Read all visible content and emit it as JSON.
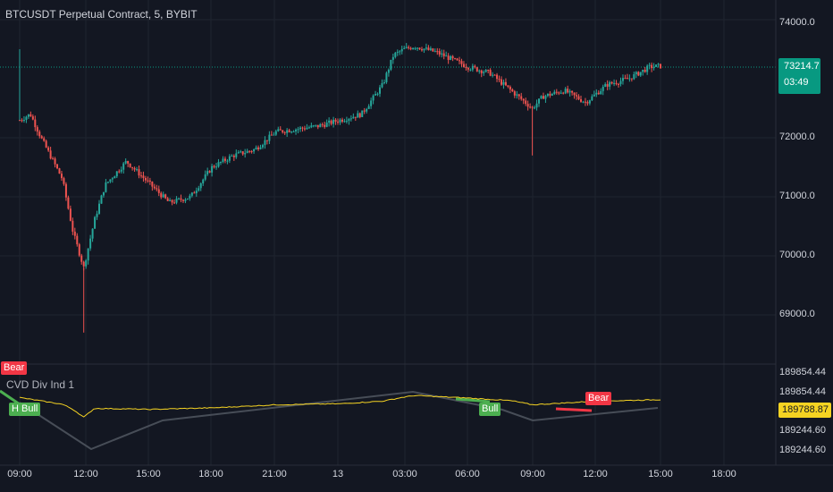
{
  "title": "BTCUSDT Perpetual Contract, 5, BYBIT",
  "indicator_title": "CVD Div Ind 1",
  "colors": {
    "background": "#131722",
    "grid": "#1f2430",
    "up": "#26a69a",
    "down": "#ef5350",
    "last_line": "#089981",
    "cvd": "#f5d322",
    "bull": "#4caf50",
    "bear": "#f23645",
    "zigzag": "#474d57"
  },
  "price_axis": {
    "labels": [
      "74000.0",
      "72000.0",
      "71000.0",
      "70000.0",
      "69000.0"
    ],
    "last_price": "73214.7",
    "countdown": "03:49"
  },
  "indicator_axis": {
    "labels": [
      "189854.44",
      "189854.44",
      "189244.60",
      "189244.60"
    ],
    "last_value": "189788.87"
  },
  "time_axis": {
    "labels": [
      "09:00",
      "12:00",
      "15:00",
      "18:00",
      "21:00",
      "13",
      "03:00",
      "06:00",
      "09:00",
      "12:00",
      "15:00",
      "18:00"
    ]
  },
  "divergence_labels": [
    {
      "text": "Bear",
      "kind": "bear"
    },
    {
      "text": "H Bull",
      "kind": "bull"
    },
    {
      "text": "Bull",
      "kind": "bull"
    },
    {
      "text": "Bear",
      "kind": "bear"
    }
  ],
  "chart_data": {
    "type": "candlestick",
    "title": "BTCUSDT Perpetual Contract, 5, BYBIT",
    "price_anchors": [
      {
        "t": "09:00",
        "price": 72300
      },
      {
        "t": "09:30",
        "price": 72400
      },
      {
        "t": "10:00",
        "price": 72000
      },
      {
        "t": "11:00",
        "price": 71300
      },
      {
        "t": "11:30",
        "price": 70400
      },
      {
        "t": "12:00",
        "price": 69800
      },
      {
        "t": "12:30",
        "price": 70600
      },
      {
        "t": "13:00",
        "price": 71200
      },
      {
        "t": "14:00",
        "price": 71600
      },
      {
        "t": "15:00",
        "price": 71250
      },
      {
        "t": "16:00",
        "price": 70900
      },
      {
        "t": "17:00",
        "price": 71000
      },
      {
        "t": "18:00",
        "price": 71500
      },
      {
        "t": "19:00",
        "price": 71700
      },
      {
        "t": "20:00",
        "price": 71800
      },
      {
        "t": "21:00",
        "price": 72100
      },
      {
        "t": "22:00",
        "price": 72150
      },
      {
        "t": "23:00",
        "price": 72200
      },
      {
        "t": "00:00",
        "price": 72300
      },
      {
        "t": "01:00",
        "price": 72400
      },
      {
        "t": "02:00",
        "price": 72900
      },
      {
        "t": "02:30",
        "price": 73400
      },
      {
        "t": "03:00",
        "price": 73500
      },
      {
        "t": "03:30",
        "price": 73550
      },
      {
        "t": "04:30",
        "price": 73450
      },
      {
        "t": "06:00",
        "price": 73200
      },
      {
        "t": "07:00",
        "price": 73100
      },
      {
        "t": "08:00",
        "price": 72800
      },
      {
        "t": "09:00",
        "price": 72500
      },
      {
        "t": "09:30",
        "price": 72700
      },
      {
        "t": "10:30",
        "price": 72800
      },
      {
        "t": "11:30",
        "price": 72600
      },
      {
        "t": "12:30",
        "price": 72900
      },
      {
        "t": "13:30",
        "price": 73000
      },
      {
        "t": "14:30",
        "price": 73200
      },
      {
        "t": "15:00",
        "price": 73215
      }
    ],
    "spikes": [
      {
        "t": "09:00",
        "high": 73500
      },
      {
        "t": "12:00",
        "low": 68700
      },
      {
        "t": "09:00",
        "low": 71700
      }
    ],
    "last_price": 73214.7,
    "ylim": [
      68700,
      74100
    ],
    "cvd_anchors": [
      {
        "t": "09:00",
        "value": 189830
      },
      {
        "t": "11:00",
        "value": 189700
      },
      {
        "t": "11:30",
        "value": 189600
      },
      {
        "t": "12:00",
        "value": 189450
      },
      {
        "t": "12:30",
        "value": 189620
      },
      {
        "t": "14:00",
        "value": 189610
      },
      {
        "t": "15:00",
        "value": 189600
      },
      {
        "t": "18:00",
        "value": 189630
      },
      {
        "t": "21:00",
        "value": 189690
      },
      {
        "t": "00:00",
        "value": 189710
      },
      {
        "t": "02:00",
        "value": 189760
      },
      {
        "t": "03:00",
        "value": 189840
      },
      {
        "t": "03:30",
        "value": 189870
      },
      {
        "t": "06:00",
        "value": 189820
      },
      {
        "t": "08:00",
        "value": 189770
      },
      {
        "t": "09:00",
        "value": 189690
      },
      {
        "t": "12:00",
        "value": 189760
      },
      {
        "t": "15:00",
        "value": 189789
      }
    ],
    "cvd_last": 189788.87
  }
}
